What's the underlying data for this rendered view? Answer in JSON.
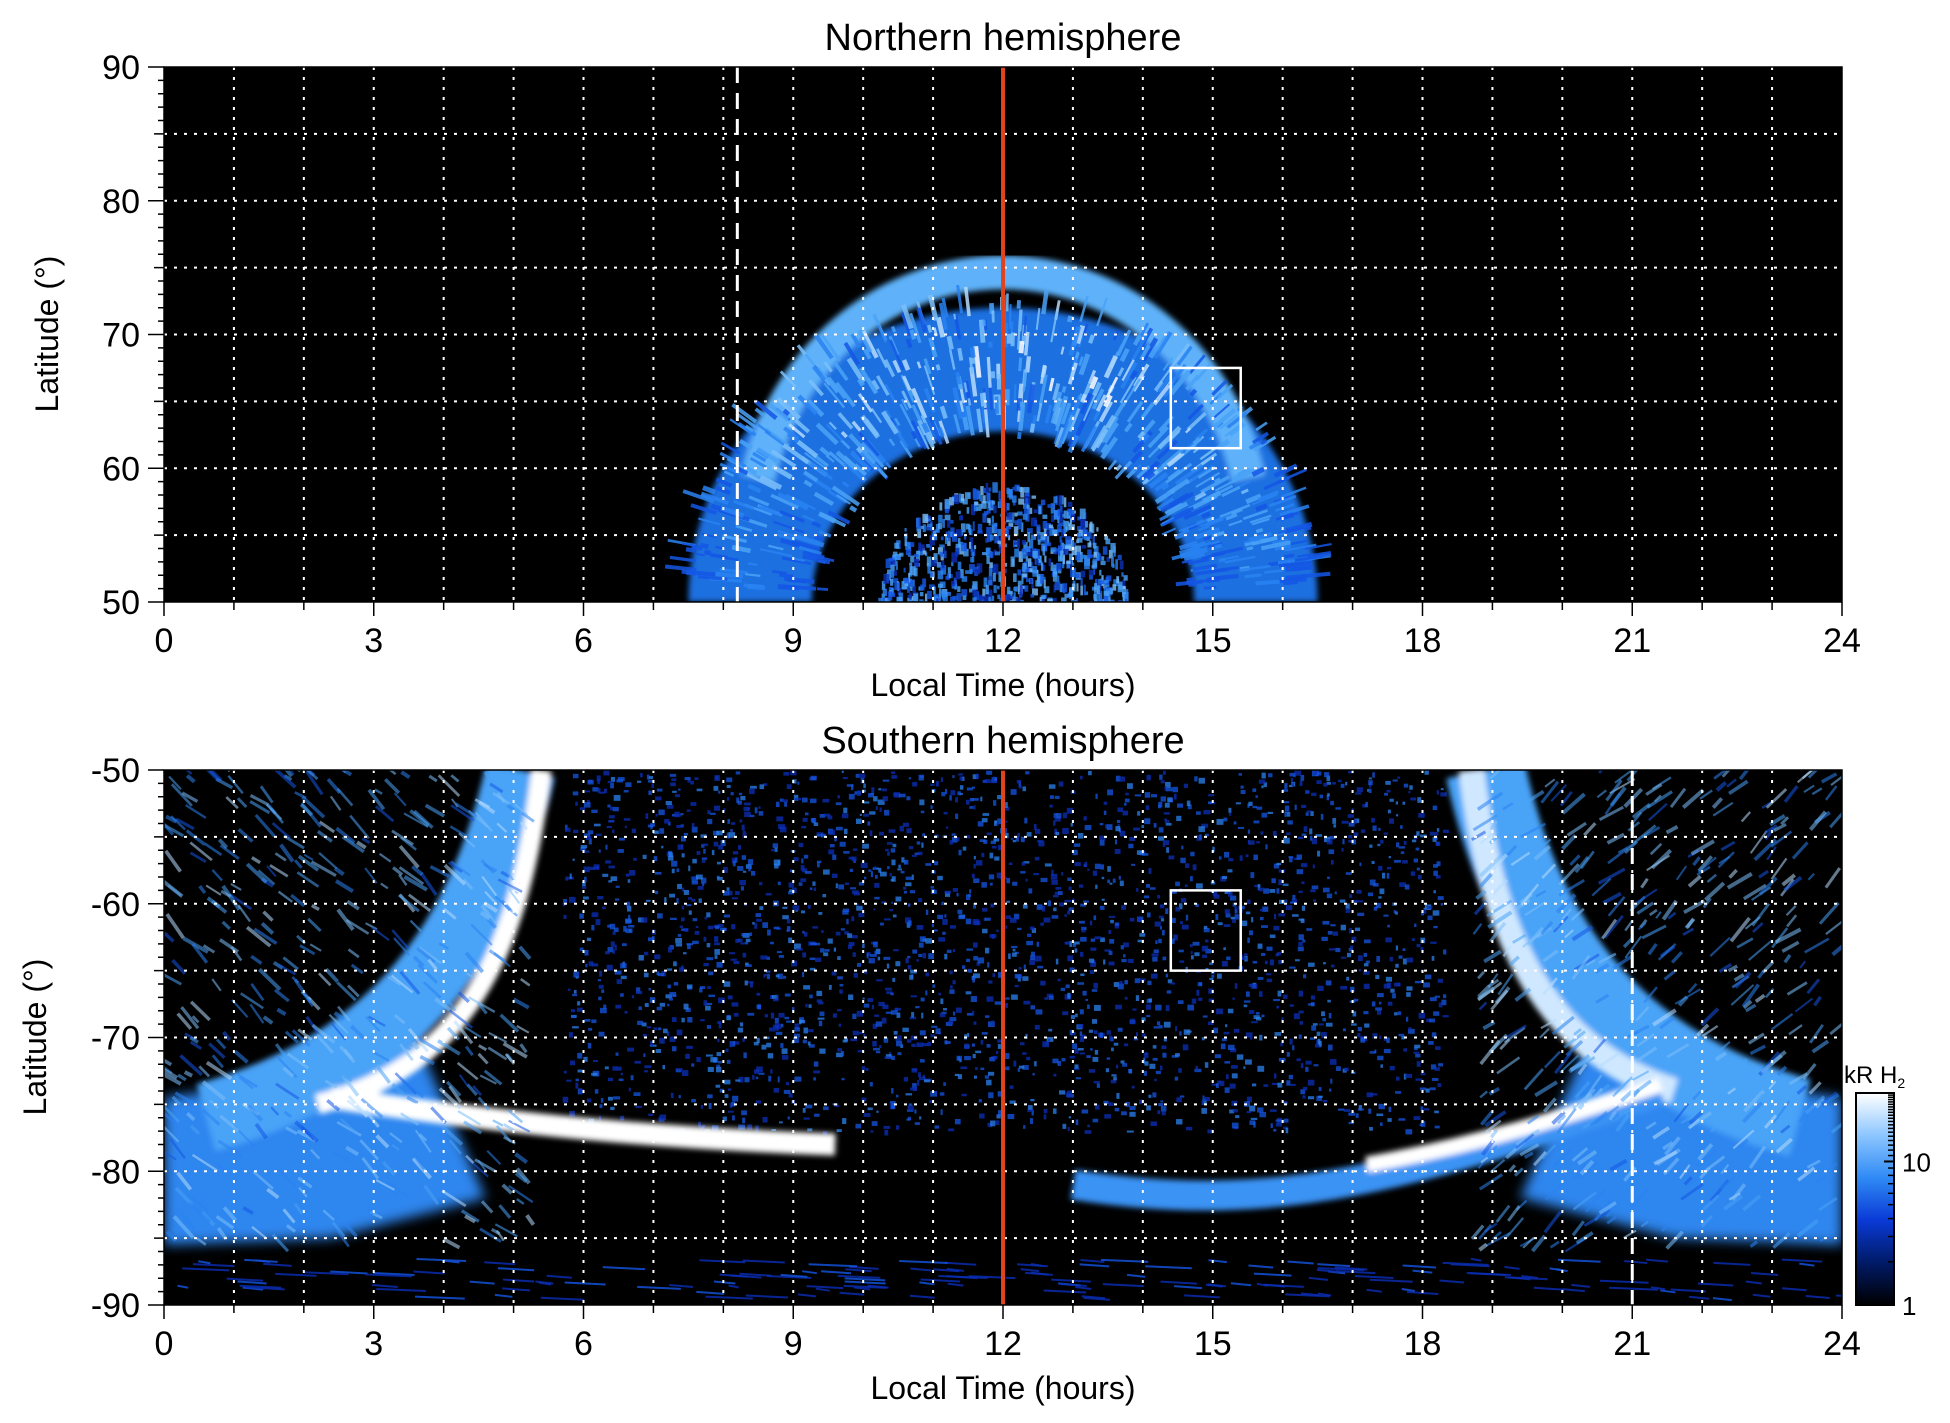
{
  "chart_data": [
    {
      "type": "heatmap",
      "title": "Northern hemisphere",
      "xlabel": "Local Time (hours)",
      "ylabel": "Latitude (°)",
      "xlim": [
        0,
        24
      ],
      "ylim": [
        50,
        90
      ],
      "xticks": [
        0,
        3,
        6,
        9,
        12,
        15,
        18,
        21,
        24
      ],
      "yticks": [
        50,
        60,
        70,
        80,
        90
      ],
      "grid": true,
      "reference_lines": [
        {
          "kind": "vertical-solid",
          "color": "#e0441e",
          "x": 12
        },
        {
          "kind": "vertical-dashed",
          "color": "#ffffff",
          "x": 8.2
        }
      ],
      "box": {
        "x0": 14.4,
        "x1": 15.4,
        "y0": 61.5,
        "y1": 67.5
      },
      "features": {
        "main_oval": {
          "center_lt": 12,
          "lat_at_center": 68,
          "lat_low_edge": 50,
          "lt_span": [
            7.6,
            16.6
          ],
          "width_deg": 6
        },
        "inner_diffuse": {
          "center_lt": 12,
          "lat_top": 59,
          "lt_span": [
            10.2,
            13.8
          ]
        }
      }
    },
    {
      "type": "heatmap",
      "title": "Southern hemisphere",
      "xlabel": "Local Time (hours)",
      "ylabel": "Latitude (°)",
      "xlim": [
        0,
        24
      ],
      "ylim": [
        -90,
        -50
      ],
      "xticks": [
        0,
        3,
        6,
        9,
        12,
        15,
        18,
        21,
        24
      ],
      "yticks": [
        -90,
        -80,
        -70,
        -60,
        -50
      ],
      "grid": true,
      "reference_lines": [
        {
          "kind": "vertical-solid",
          "color": "#e0441e",
          "x": 12
        },
        {
          "kind": "vertical-dashed",
          "color": "#ffffff",
          "x": 21
        }
      ],
      "box": {
        "x0": 14.4,
        "x1": 15.4,
        "y0": -65,
        "y1": -59
      },
      "colorbar": {
        "unit_label": "kR H",
        "unit_subscript": "2",
        "ticks": [
          "1",
          "10"
        ],
        "scale": "log",
        "range": [
          1,
          30
        ],
        "colors": [
          "#000000",
          "#001a66",
          "#0a3ad6",
          "#2f8af5",
          "#8cc6ff",
          "#ffffff"
        ]
      },
      "features": {
        "left_arc_lat": [
          -50,
          -60,
          -70,
          -76,
          -78
        ],
        "right_arc_lat": [
          -50,
          -60,
          -70,
          -76,
          -80
        ],
        "main_band_lat": -78,
        "polar_cap_lat_range": [
          -77,
          -50
        ]
      }
    }
  ]
}
